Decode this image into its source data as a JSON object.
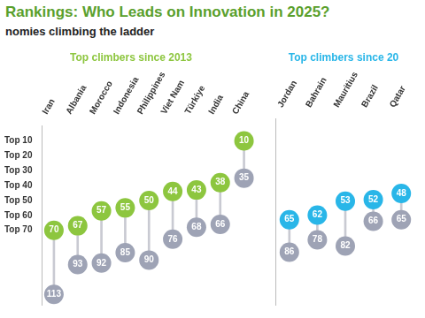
{
  "header": {
    "title": "Rankings: Who Leads on Innovation in 2025?",
    "subtitle": "nomies climbing the ladder"
  },
  "chart_data": [
    {
      "type": "dumbbell",
      "title": "Top climbers since 2013",
      "categories": [
        "Iran",
        "Albania",
        "Morocco",
        "Indonesia",
        "Philippines",
        "Viet Nam",
        "Türkiye",
        "India",
        "China"
      ],
      "series": [
        {
          "color": "#8dc63f",
          "values": [
            70,
            67,
            57,
            55,
            50,
            44,
            43,
            38,
            10
          ]
        },
        {
          "color": "#9ea3b5",
          "values": [
            113,
            93,
            92,
            85,
            90,
            76,
            68,
            66,
            35
          ]
        }
      ],
      "ylim": [
        0,
        120
      ],
      "yticks": [
        {
          "value": 10,
          "label": "Top 10"
        },
        {
          "value": 20,
          "label": "Top 20"
        },
        {
          "value": 30,
          "label": "Top 30"
        },
        {
          "value": 40,
          "label": "Top 40"
        },
        {
          "value": 50,
          "label": "Top 50"
        },
        {
          "value": 60,
          "label": "Top 60"
        },
        {
          "value": 70,
          "label": "Top 70"
        }
      ],
      "grid": false,
      "data_labels": true,
      "tick_labels": true
    },
    {
      "type": "dumbbell",
      "title": "Top climbers since 20",
      "categories": [
        "Jordan",
        "Bahrain",
        "Mauritius",
        "Brazil",
        "Qatar"
      ],
      "series": [
        {
          "color": "#29b6e8",
          "values": [
            65,
            62,
            53,
            52,
            48
          ]
        },
        {
          "color": "#9ea3b5",
          "values": [
            86,
            78,
            82,
            66,
            65
          ]
        }
      ],
      "ylim": [
        0,
        120
      ],
      "yticks": [
        {
          "value": 10,
          "label": "Top 10"
        },
        {
          "value": 20,
          "label": "Top 20"
        },
        {
          "value": 30,
          "label": "Top 30"
        },
        {
          "value": 40,
          "label": "Top 40"
        },
        {
          "value": 50,
          "label": "Top 50"
        },
        {
          "value": 60,
          "label": "Top 60"
        },
        {
          "value": 70,
          "label": "Top 70"
        }
      ],
      "grid": false,
      "data_labels": true,
      "tick_labels": "x"
    }
  ]
}
